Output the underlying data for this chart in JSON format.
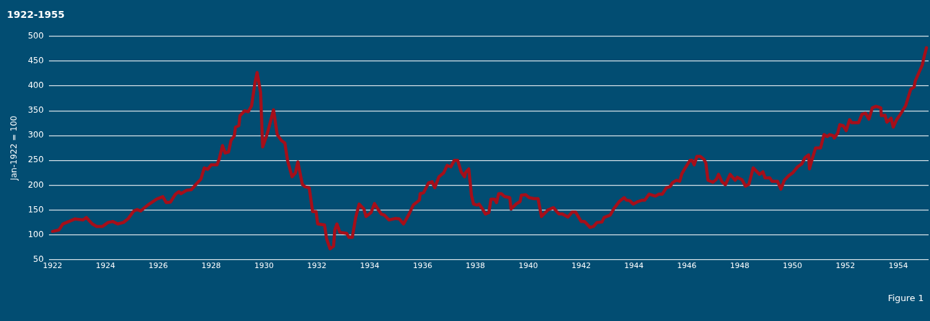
{
  "chart_data": {
    "type": "line",
    "title": "1922-1955",
    "ylabel": "Jan-1922 = 100",
    "annotations": [
      "Figure 1"
    ],
    "x": [
      1922.0,
      1922.24,
      1922.39,
      1922.84,
      1923.15,
      1923.28,
      1923.5,
      1923.67,
      1923.89,
      1924.1,
      1924.28,
      1924.46,
      1924.68,
      1924.85,
      1925.07,
      1925.2,
      1925.33,
      1925.6,
      1925.94,
      1926.17,
      1926.3,
      1926.46,
      1926.65,
      1926.78,
      1926.86,
      1927.08,
      1927.25,
      1927.43,
      1927.61,
      1927.74,
      1927.87,
      1928.0,
      1928.22,
      1928.3,
      1928.43,
      1928.53,
      1928.66,
      1928.75,
      1928.88,
      1928.92,
      1929.05,
      1929.09,
      1929.27,
      1929.4,
      1929.53,
      1929.66,
      1929.74,
      1929.87,
      1929.95,
      1930.1,
      1930.19,
      1930.36,
      1930.5,
      1930.66,
      1930.79,
      1930.89,
      1931.06,
      1931.19,
      1931.28,
      1931.45,
      1931.55,
      1931.71,
      1931.84,
      1931.97,
      1932.03,
      1932.29,
      1932.37,
      1932.5,
      1932.63,
      1932.68,
      1932.76,
      1932.87,
      1933.13,
      1933.21,
      1933.34,
      1933.47,
      1933.6,
      1933.78,
      1933.86,
      1934.05,
      1934.18,
      1934.31,
      1934.44,
      1934.55,
      1934.73,
      1934.97,
      1935.12,
      1935.28,
      1935.49,
      1935.65,
      1935.88,
      1935.91,
      1936.04,
      1936.23,
      1936.36,
      1936.46,
      1936.62,
      1936.8,
      1936.93,
      1937.07,
      1937.2,
      1937.33,
      1937.46,
      1937.59,
      1937.62,
      1937.75,
      1937.85,
      1937.93,
      1938.06,
      1938.14,
      1938.27,
      1938.38,
      1938.51,
      1938.59,
      1938.72,
      1938.8,
      1938.88,
      1938.98,
      1939.11,
      1939.3,
      1939.35,
      1939.56,
      1939.69,
      1939.74,
      1939.9,
      1940.03,
      1940.22,
      1940.37,
      1940.5,
      1940.74,
      1940.95,
      1941.16,
      1941.29,
      1941.5,
      1941.66,
      1941.79,
      1942.0,
      1942.13,
      1942.34,
      1942.47,
      1942.6,
      1942.79,
      1942.87,
      1943.1,
      1943.23,
      1943.44,
      1943.63,
      1943.71,
      1943.84,
      1943.97,
      1944.15,
      1944.31,
      1944.41,
      1944.57,
      1944.81,
      1944.94,
      1945.07,
      1945.23,
      1945.36,
      1945.46,
      1945.6,
      1945.73,
      1945.81,
      1945.94,
      1946.12,
      1946.2,
      1946.28,
      1946.38,
      1946.51,
      1946.65,
      1946.72,
      1946.8,
      1946.99,
      1947.12,
      1947.2,
      1947.33,
      1947.46,
      1947.64,
      1947.83,
      1947.91,
      1948.09,
      1948.22,
      1948.35,
      1948.51,
      1948.75,
      1948.88,
      1948.96,
      1949.14,
      1949.22,
      1949.43,
      1949.56,
      1949.69,
      1949.87,
      1950.01,
      1950.19,
      1950.35,
      1950.48,
      1950.61,
      1950.64,
      1950.74,
      1950.87,
      1951.06,
      1951.19,
      1951.32,
      1951.4,
      1951.53,
      1951.58,
      1951.71,
      1951.79,
      1951.92,
      1952.03,
      1952.16,
      1952.24,
      1952.5,
      1952.63,
      1952.76,
      1952.89,
      1953.02,
      1953.16,
      1953.34,
      1953.36,
      1953.5,
      1953.57,
      1953.73,
      1953.81,
      1953.94,
      1954.07,
      1954.28,
      1954.47,
      1954.6,
      1954.65,
      1954.91,
      1954.99,
      1955.07
    ],
    "values": [
      107,
      110,
      122,
      132,
      130,
      135,
      122,
      117,
      117,
      125,
      127,
      122,
      125,
      132,
      148,
      151,
      148,
      160,
      172,
      177,
      165,
      166,
      182,
      187,
      183,
      190,
      191,
      202,
      212,
      235,
      232,
      241,
      241,
      252,
      280,
      265,
      267,
      290,
      300,
      317,
      320,
      340,
      350,
      348,
      360,
      407,
      427,
      387,
      277,
      300,
      317,
      352,
      302,
      290,
      285,
      250,
      217,
      225,
      247,
      202,
      197,
      195,
      147,
      147,
      122,
      120,
      92,
      72,
      77,
      110,
      122,
      105,
      103,
      95,
      95,
      135,
      162,
      152,
      137,
      145,
      163,
      152,
      142,
      140,
      130,
      133,
      132,
      122,
      142,
      160,
      170,
      183,
      185,
      205,
      207,
      195,
      217,
      225,
      240,
      237,
      250,
      250,
      227,
      217,
      225,
      233,
      180,
      162,
      160,
      162,
      152,
      142,
      145,
      172,
      172,
      165,
      183,
      183,
      177,
      175,
      152,
      163,
      167,
      180,
      181,
      175,
      173,
      173,
      137,
      150,
      155,
      142,
      142,
      136,
      146,
      146,
      127,
      127,
      115,
      117,
      125,
      126,
      135,
      140,
      152,
      167,
      175,
      170,
      169,
      162,
      167,
      170,
      170,
      182,
      178,
      182,
      182,
      195,
      197,
      205,
      210,
      208,
      223,
      235,
      250,
      250,
      241,
      258,
      258,
      252,
      245,
      210,
      206,
      212,
      222,
      207,
      201,
      222,
      210,
      216,
      211,
      198,
      202,
      235,
      222,
      227,
      215,
      215,
      208,
      208,
      192,
      210,
      220,
      225,
      237,
      243,
      256,
      261,
      233,
      252,
      275,
      275,
      302,
      298,
      302,
      300,
      295,
      305,
      322,
      320,
      310,
      332,
      326,
      326,
      343,
      345,
      333,
      356,
      359,
      356,
      340,
      341,
      327,
      335,
      317,
      332,
      342,
      360,
      393,
      398,
      411,
      442,
      461,
      477
    ],
    "color": "#a50f1a",
    "xlim": [
      1921.87,
      1955.15
    ],
    "xticks": [
      1922,
      1924,
      1926,
      1928,
      1930,
      1932,
      1934,
      1936,
      1938,
      1940,
      1942,
      1944,
      1946,
      1948,
      1950,
      1952,
      1954
    ],
    "ylim": [
      50,
      500
    ],
    "yticks": [
      50,
      100,
      150,
      200,
      250,
      300,
      350,
      400,
      450,
      500
    ],
    "grid": "y",
    "legend": false,
    "marker": "none",
    "line_style": "solid"
  }
}
